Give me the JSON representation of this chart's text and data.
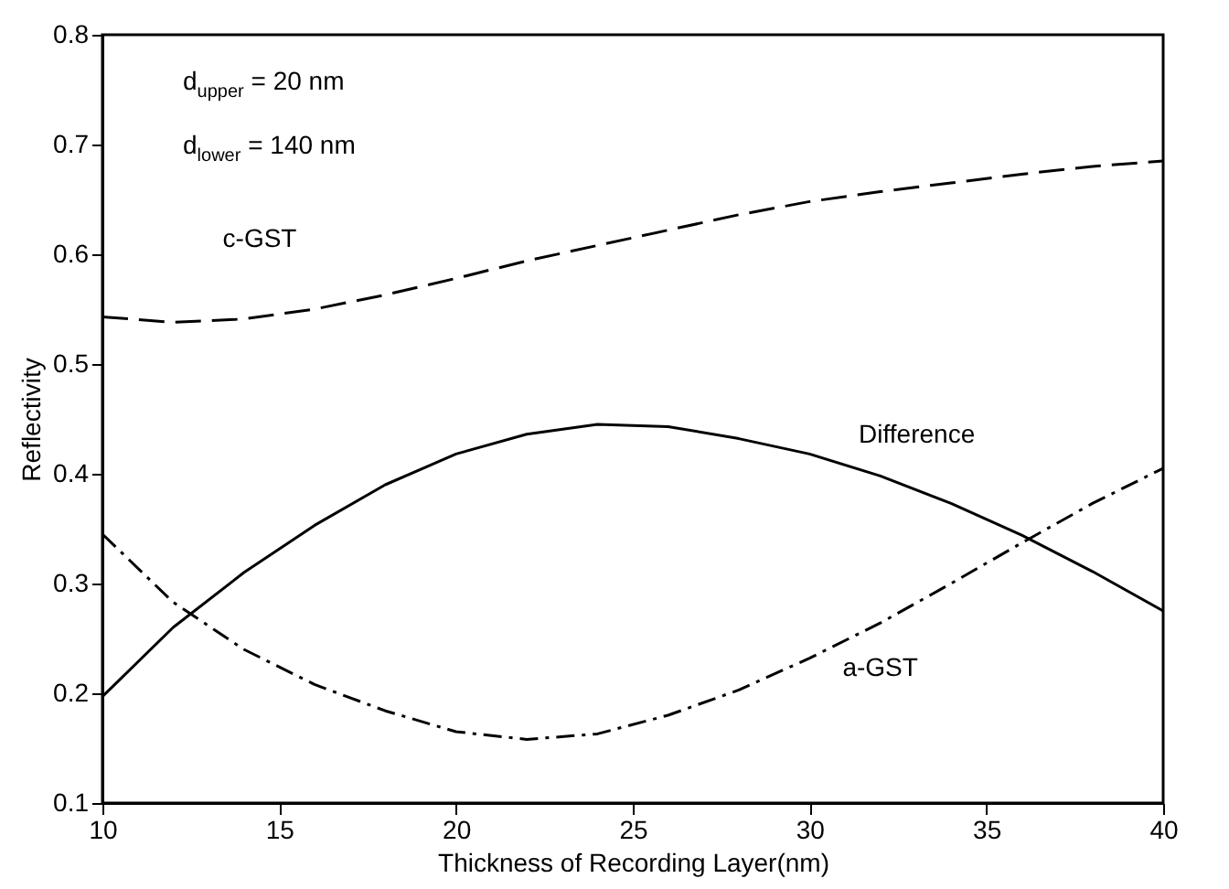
{
  "chart_data": {
    "type": "line",
    "xlabel": "Thickness of Recording Layer(nm)",
    "ylabel": "Reflectivity",
    "x": [
      10,
      12,
      14,
      16,
      18,
      20,
      22,
      24,
      26,
      28,
      30,
      32,
      34,
      36,
      38,
      40
    ],
    "series": [
      {
        "name": "c-GST",
        "color": "#000000",
        "line_style": "dashed",
        "values": [
          0.543,
          0.538,
          0.541,
          0.55,
          0.563,
          0.578,
          0.594,
          0.608,
          0.622,
          0.636,
          0.648,
          0.657,
          0.665,
          0.673,
          0.68,
          0.685
        ]
      },
      {
        "name": "Difference",
        "color": "#000000",
        "line_style": "solid",
        "values": [
          0.197,
          0.26,
          0.31,
          0.353,
          0.39,
          0.418,
          0.436,
          0.445,
          0.443,
          0.432,
          0.418,
          0.398,
          0.373,
          0.344,
          0.311,
          0.275
        ]
      },
      {
        "name": "a-GST",
        "color": "#000000",
        "line_style": "dashdot",
        "values": [
          0.345,
          0.283,
          0.24,
          0.208,
          0.184,
          0.165,
          0.158,
          0.163,
          0.18,
          0.203,
          0.232,
          0.264,
          0.3,
          0.337,
          0.373,
          0.405
        ]
      }
    ],
    "xlim": [
      10,
      40
    ],
    "xticks": [
      10,
      15,
      20,
      25,
      30,
      35,
      40
    ],
    "ylim": [
      0.1,
      0.8
    ],
    "yticks": [
      0.1,
      0.2,
      0.3,
      0.4,
      0.5,
      0.6,
      0.7,
      0.8
    ],
    "annotations": [
      "d$_{upper}$ = 20 nm",
      "d$_{lower}$ = 140 nm"
    ],
    "grid": false
  }
}
